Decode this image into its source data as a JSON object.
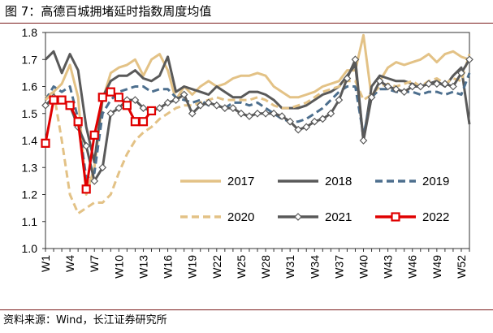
{
  "figure": {
    "number": "图 7：",
    "title": "高德百城拥堵延时指数周度均值",
    "source": "资料来源：Wind，长江证券研究所"
  },
  "chart_data": {
    "type": "line",
    "title": "高德百城拥堵延时指数周度均值",
    "xlabel": "",
    "ylabel": "",
    "ylim": [
      1.0,
      1.8
    ],
    "y_ticks": [
      1.0,
      1.1,
      1.2,
      1.3,
      1.4,
      1.5,
      1.6,
      1.7,
      1.8
    ],
    "x_ticks": [
      {
        "week": 1,
        "label": "W1"
      },
      {
        "week": 4,
        "label": "W4"
      },
      {
        "week": 7,
        "label": "W7"
      },
      {
        "week": 10,
        "label": "W10"
      },
      {
        "week": 13,
        "label": "W13"
      },
      {
        "week": 16,
        "label": "W16"
      },
      {
        "week": 19,
        "label": "W19"
      },
      {
        "week": 22,
        "label": "W22"
      },
      {
        "week": 25,
        "label": "W25"
      },
      {
        "week": 28,
        "label": "W28"
      },
      {
        "week": 31,
        "label": "W31"
      },
      {
        "week": 34,
        "label": "W34"
      },
      {
        "week": 37,
        "label": "W37"
      },
      {
        "week": 40,
        "label": "W40"
      },
      {
        "week": 43,
        "label": "W43"
      },
      {
        "week": 46,
        "label": "W46"
      },
      {
        "week": 49,
        "label": "W49"
      },
      {
        "week": 52,
        "label": "W52"
      }
    ],
    "legend_position": "lower-right inside plot",
    "series": [
      {
        "name": "2017",
        "color": "#e3c286",
        "style": "solid",
        "marker": "none",
        "x": [
          1,
          2,
          3,
          4,
          5,
          6,
          7,
          8,
          9,
          10,
          11,
          12,
          13,
          14,
          15,
          16,
          17,
          18,
          19,
          20,
          21,
          22,
          23,
          24,
          25,
          26,
          27,
          28,
          29,
          30,
          31,
          32,
          33,
          34,
          35,
          36,
          37,
          38,
          39,
          40,
          41,
          42,
          43,
          44,
          45,
          46,
          47,
          48,
          49,
          50,
          51,
          52,
          53
        ],
        "values": [
          1.56,
          1.58,
          1.61,
          1.68,
          1.56,
          1.2,
          1.3,
          1.55,
          1.65,
          1.67,
          1.68,
          1.7,
          1.64,
          1.7,
          1.72,
          1.66,
          1.55,
          1.6,
          1.57,
          1.6,
          1.62,
          1.6,
          1.61,
          1.63,
          1.64,
          1.64,
          1.65,
          1.64,
          1.6,
          1.58,
          1.56,
          1.56,
          1.57,
          1.58,
          1.6,
          1.61,
          1.62,
          1.66,
          1.66,
          1.79,
          1.56,
          1.62,
          1.67,
          1.69,
          1.68,
          1.69,
          1.7,
          1.72,
          1.69,
          1.72,
          1.73,
          1.71,
          1.7
        ]
      },
      {
        "name": "2018",
        "color": "#595959",
        "style": "solid",
        "marker": "none",
        "x": [
          1,
          2,
          3,
          4,
          5,
          6,
          7,
          8,
          9,
          10,
          11,
          12,
          13,
          14,
          15,
          16,
          17,
          18,
          19,
          20,
          21,
          22,
          23,
          24,
          25,
          26,
          27,
          28,
          29,
          30,
          31,
          32,
          33,
          34,
          35,
          36,
          37,
          38,
          39,
          40,
          41,
          42,
          43,
          44,
          45,
          46,
          47,
          48,
          49,
          50,
          51,
          52,
          53
        ],
        "values": [
          1.7,
          1.73,
          1.65,
          1.72,
          1.66,
          1.45,
          1.32,
          1.56,
          1.62,
          1.64,
          1.64,
          1.66,
          1.63,
          1.62,
          1.64,
          1.71,
          1.58,
          1.6,
          1.59,
          1.58,
          1.57,
          1.6,
          1.58,
          1.56,
          1.56,
          1.58,
          1.58,
          1.57,
          1.55,
          1.52,
          1.52,
          1.52,
          1.53,
          1.55,
          1.57,
          1.58,
          1.6,
          1.64,
          1.68,
          1.4,
          1.6,
          1.64,
          1.63,
          1.62,
          1.62,
          1.61,
          1.6,
          1.61,
          1.62,
          1.6,
          1.64,
          1.67,
          1.46
        ]
      },
      {
        "name": "2019",
        "color": "#4d6f8e",
        "style": "dashed",
        "marker": "none",
        "x": [
          1,
          2,
          3,
          4,
          5,
          6,
          7,
          8,
          9,
          10,
          11,
          12,
          13,
          14,
          15,
          16,
          17,
          18,
          19,
          20,
          21,
          22,
          23,
          24,
          25,
          26,
          27,
          28,
          29,
          30,
          31,
          32,
          33,
          34,
          35,
          36,
          37,
          38,
          39,
          40,
          41,
          42,
          43,
          44,
          45,
          46,
          47,
          48,
          49,
          50,
          51,
          52,
          53
        ],
        "values": [
          1.55,
          1.6,
          1.58,
          1.6,
          1.48,
          1.26,
          1.28,
          1.5,
          1.55,
          1.58,
          1.59,
          1.6,
          1.6,
          1.58,
          1.59,
          1.59,
          1.56,
          1.55,
          1.54,
          1.55,
          1.53,
          1.53,
          1.52,
          1.54,
          1.54,
          1.53,
          1.54,
          1.52,
          1.5,
          1.48,
          1.47,
          1.47,
          1.48,
          1.5,
          1.52,
          1.55,
          1.58,
          1.6,
          1.6,
          1.42,
          1.56,
          1.59,
          1.59,
          1.58,
          1.58,
          1.58,
          1.57,
          1.58,
          1.58,
          1.57,
          1.58,
          1.57,
          1.65
        ]
      },
      {
        "name": "2020",
        "color": "#e3c286",
        "style": "dashed",
        "marker": "none",
        "x": [
          1,
          2,
          3,
          4,
          5,
          6,
          7,
          8,
          9,
          10,
          11,
          12,
          13,
          14,
          15,
          16,
          17,
          18,
          19,
          20,
          21,
          22,
          23,
          24,
          25,
          26,
          27,
          28,
          29,
          30,
          31,
          32,
          33,
          34,
          35,
          36,
          37,
          38,
          39,
          40,
          41,
          42,
          43,
          44,
          45,
          46,
          47,
          48,
          49,
          50,
          51,
          52,
          53
        ],
        "values": [
          1.55,
          1.58,
          1.4,
          1.2,
          1.13,
          1.15,
          1.17,
          1.17,
          1.2,
          1.28,
          1.35,
          1.4,
          1.43,
          1.45,
          1.48,
          1.5,
          1.52,
          1.53,
          1.53,
          1.54,
          1.55,
          1.56,
          1.55,
          1.55,
          1.55,
          1.55,
          1.56,
          1.55,
          1.53,
          1.52,
          1.52,
          1.53,
          1.54,
          1.56,
          1.58,
          1.59,
          1.6,
          1.62,
          1.62,
          1.55,
          1.57,
          1.6,
          1.61,
          1.6,
          1.61,
          1.62,
          1.6,
          1.62,
          1.63,
          1.61,
          1.63,
          1.62,
          1.72
        ]
      },
      {
        "name": "2021",
        "color": "#595959",
        "style": "solid",
        "marker": "diamond",
        "x": [
          1,
          2,
          3,
          4,
          5,
          6,
          7,
          8,
          9,
          10,
          11,
          12,
          13,
          14,
          15,
          16,
          17,
          18,
          19,
          20,
          21,
          22,
          23,
          24,
          25,
          26,
          27,
          28,
          29,
          30,
          31,
          32,
          33,
          34,
          35,
          36,
          37,
          38,
          39,
          40,
          41,
          42,
          43,
          44,
          45,
          46,
          47,
          48,
          49,
          50,
          51,
          52,
          53
        ],
        "values": [
          1.53,
          1.56,
          1.55,
          1.53,
          1.45,
          1.38,
          1.25,
          1.3,
          1.5,
          1.52,
          1.55,
          1.55,
          1.52,
          1.51,
          1.52,
          1.54,
          1.55,
          1.57,
          1.5,
          1.53,
          1.54,
          1.53,
          1.52,
          1.52,
          1.5,
          1.49,
          1.5,
          1.5,
          1.5,
          1.49,
          1.47,
          1.44,
          1.45,
          1.47,
          1.48,
          1.5,
          1.55,
          1.63,
          1.7,
          1.4,
          1.56,
          1.62,
          1.6,
          1.59,
          1.58,
          1.6,
          1.6,
          1.61,
          1.61,
          1.61,
          1.6,
          1.65,
          1.7
        ]
      },
      {
        "name": "2022",
        "color": "#e00000",
        "style": "solid",
        "marker": "square",
        "x": [
          1,
          2,
          3,
          4,
          5,
          6,
          7,
          8,
          9,
          10,
          11,
          12,
          13,
          14
        ],
        "values": [
          1.39,
          1.55,
          1.55,
          1.53,
          1.47,
          1.22,
          1.42,
          1.56,
          1.58,
          1.56,
          1.53,
          1.47,
          1.47,
          1.51
        ]
      }
    ]
  }
}
